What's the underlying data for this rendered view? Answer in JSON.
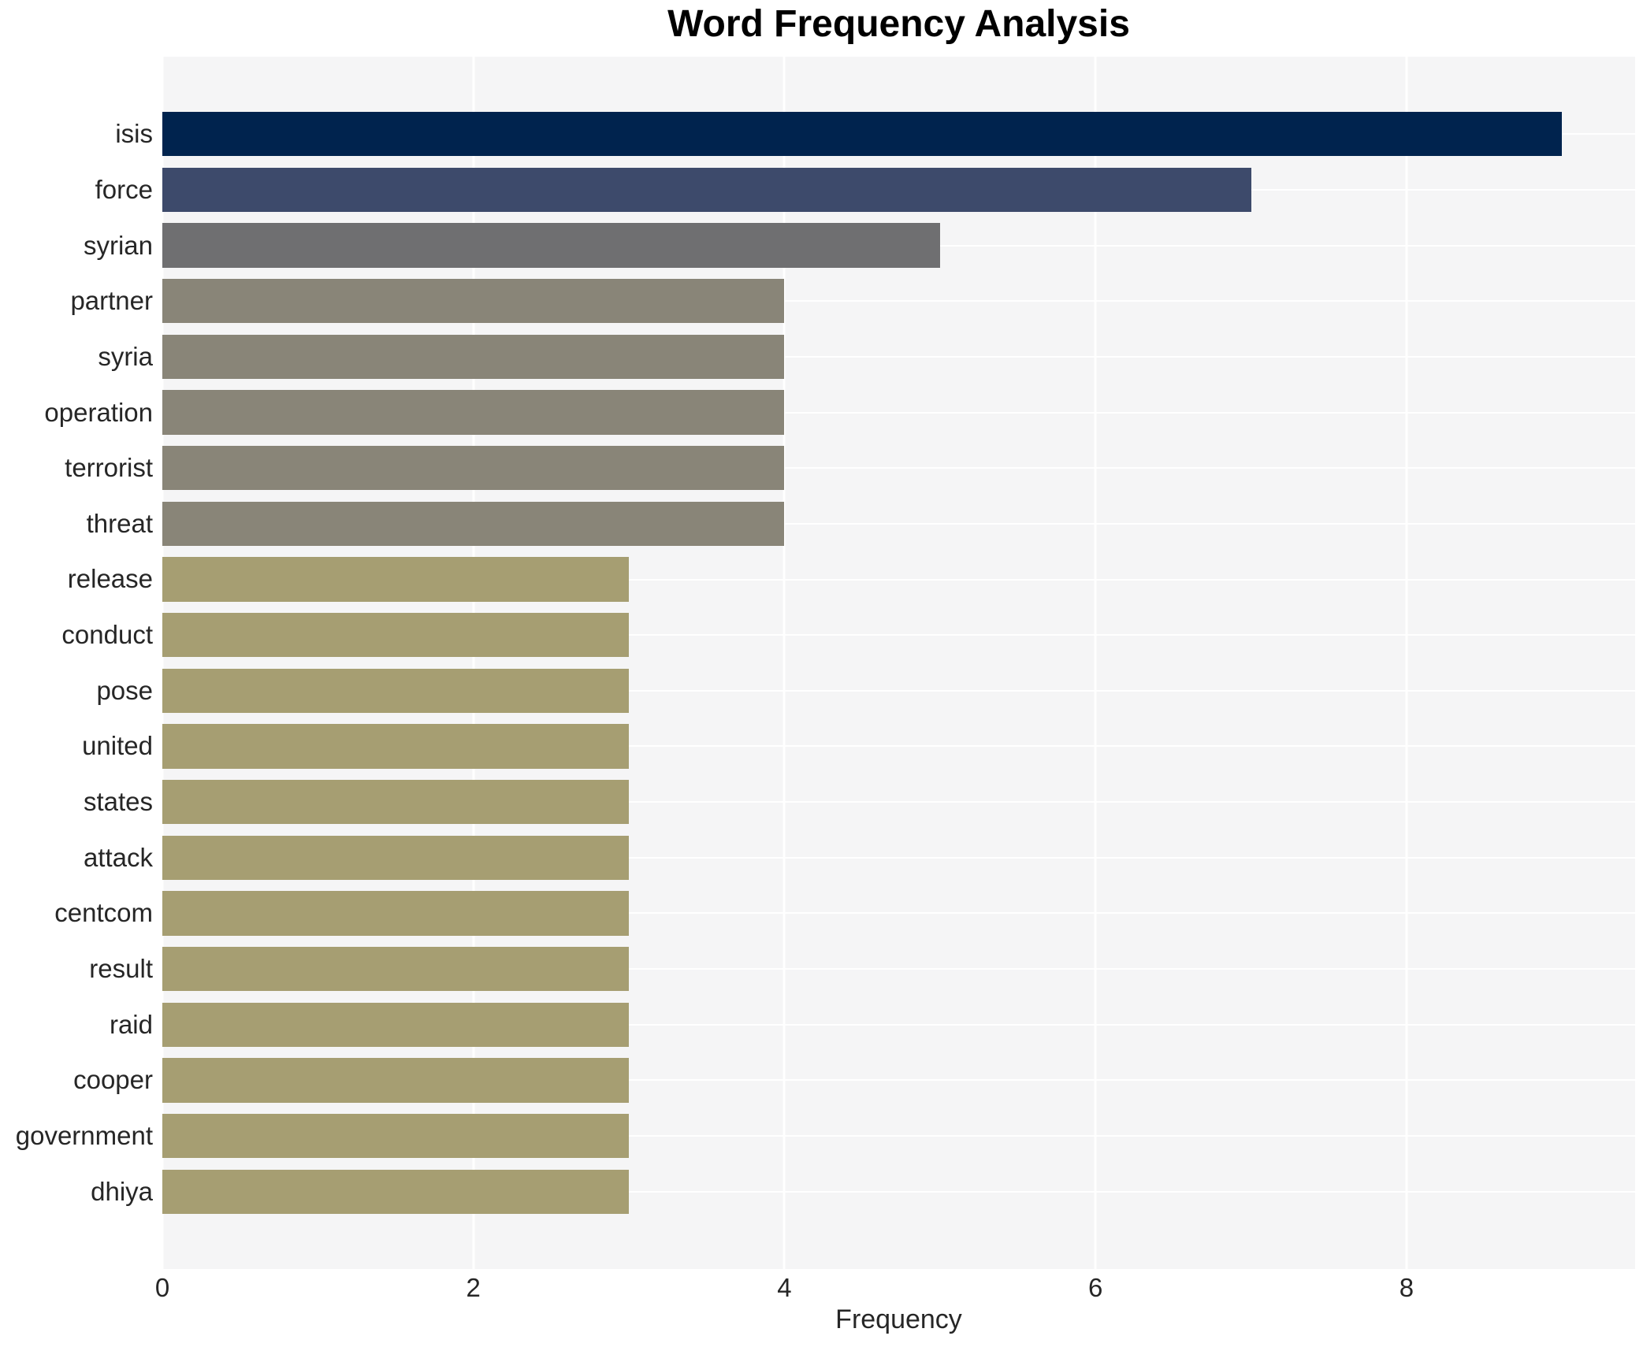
{
  "title": "Word Frequency Analysis",
  "chart_data": {
    "type": "bar",
    "orientation": "horizontal",
    "title": "Word Frequency Analysis",
    "xlabel": "Frequency",
    "ylabel": "",
    "categories": [
      "isis",
      "force",
      "syrian",
      "partner",
      "syria",
      "operation",
      "terrorist",
      "threat",
      "release",
      "conduct",
      "pose",
      "united",
      "states",
      "attack",
      "centcom",
      "result",
      "raid",
      "cooper",
      "government",
      "dhiya"
    ],
    "values": [
      9,
      7,
      5,
      4,
      4,
      4,
      4,
      4,
      3,
      3,
      3,
      3,
      3,
      3,
      3,
      3,
      3,
      3,
      3,
      3
    ],
    "bar_colors": [
      "#00234e",
      "#3d4a6b",
      "#6f6f71",
      "#898578",
      "#898578",
      "#898578",
      "#898578",
      "#898578",
      "#a69e72",
      "#a69e72",
      "#a69e72",
      "#a69e72",
      "#a69e72",
      "#a69e72",
      "#a69e72",
      "#a69e72",
      "#a69e72",
      "#a69e72",
      "#a69e72",
      "#a69e72"
    ],
    "xticks": [
      0,
      2,
      4,
      6,
      8
    ],
    "xlim": [
      0,
      9.47
    ],
    "grid": true,
    "legend": false,
    "plot_bg_color": "#f5f5f6",
    "grid_color": "#ffffff",
    "text_color": "#262626"
  }
}
